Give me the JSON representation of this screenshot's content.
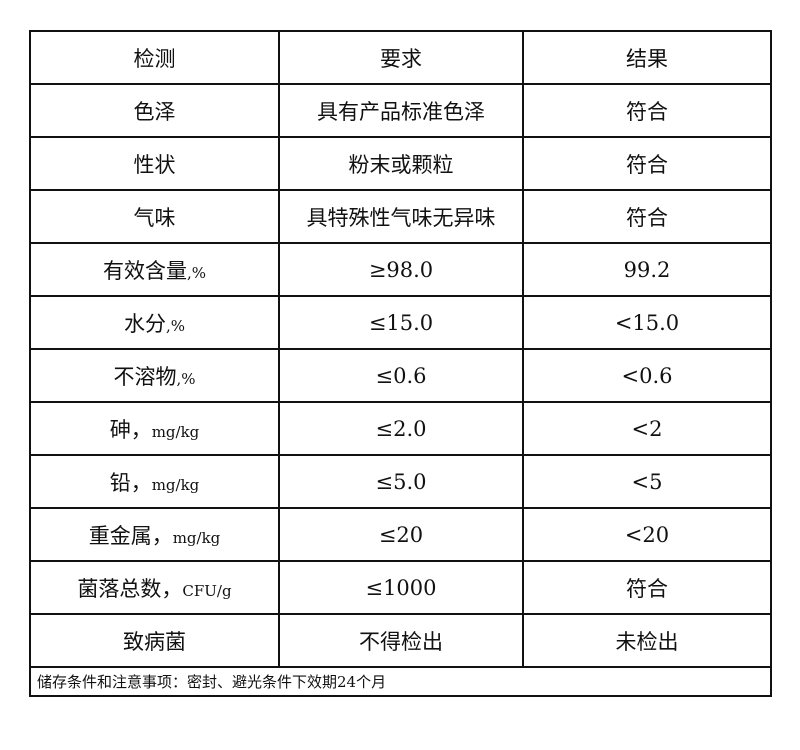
{
  "header": [
    "检测",
    "要求",
    "结果"
  ],
  "rows": [
    {
      "item": "色泽",
      "unit": "",
      "requirement": "具有产品标准色泽",
      "result": "符合"
    },
    {
      "item": "性状",
      "unit": "",
      "requirement": "粉末或颗粒",
      "result": "符合"
    },
    {
      "item": "气味",
      "unit": "",
      "requirement": "具特殊性气味无异味",
      "result": "符合"
    },
    {
      "item": "有效含量",
      "unit": ",%",
      "requirement": "≥98.0",
      "result": "99.2"
    },
    {
      "item": "水分",
      "unit": ",%",
      "requirement": "≤15.0",
      "result": "<15.0"
    },
    {
      "item": "不溶物",
      "unit": ",%",
      "requirement": "≤0.6",
      "result": "<0.6"
    },
    {
      "item": "砷，",
      "unit": "mg/kg",
      "requirement": "≤2.0",
      "result": "<2"
    },
    {
      "item": "铅，",
      "unit": "mg/kg",
      "requirement": "≤5.0",
      "result": "<5"
    },
    {
      "item": "重金属，",
      "unit": "mg/kg",
      "requirement": "≤20",
      "result": "<20"
    },
    {
      "item": "菌落总数，",
      "unit": "CFU/g",
      "requirement": "≤1000",
      "result": "符合"
    },
    {
      "item": "致病菌",
      "unit": "",
      "requirement": "不得检出",
      "result": "未检出"
    }
  ],
  "footer": "储存条件和注意事项：密封、避光条件下效期24个月"
}
